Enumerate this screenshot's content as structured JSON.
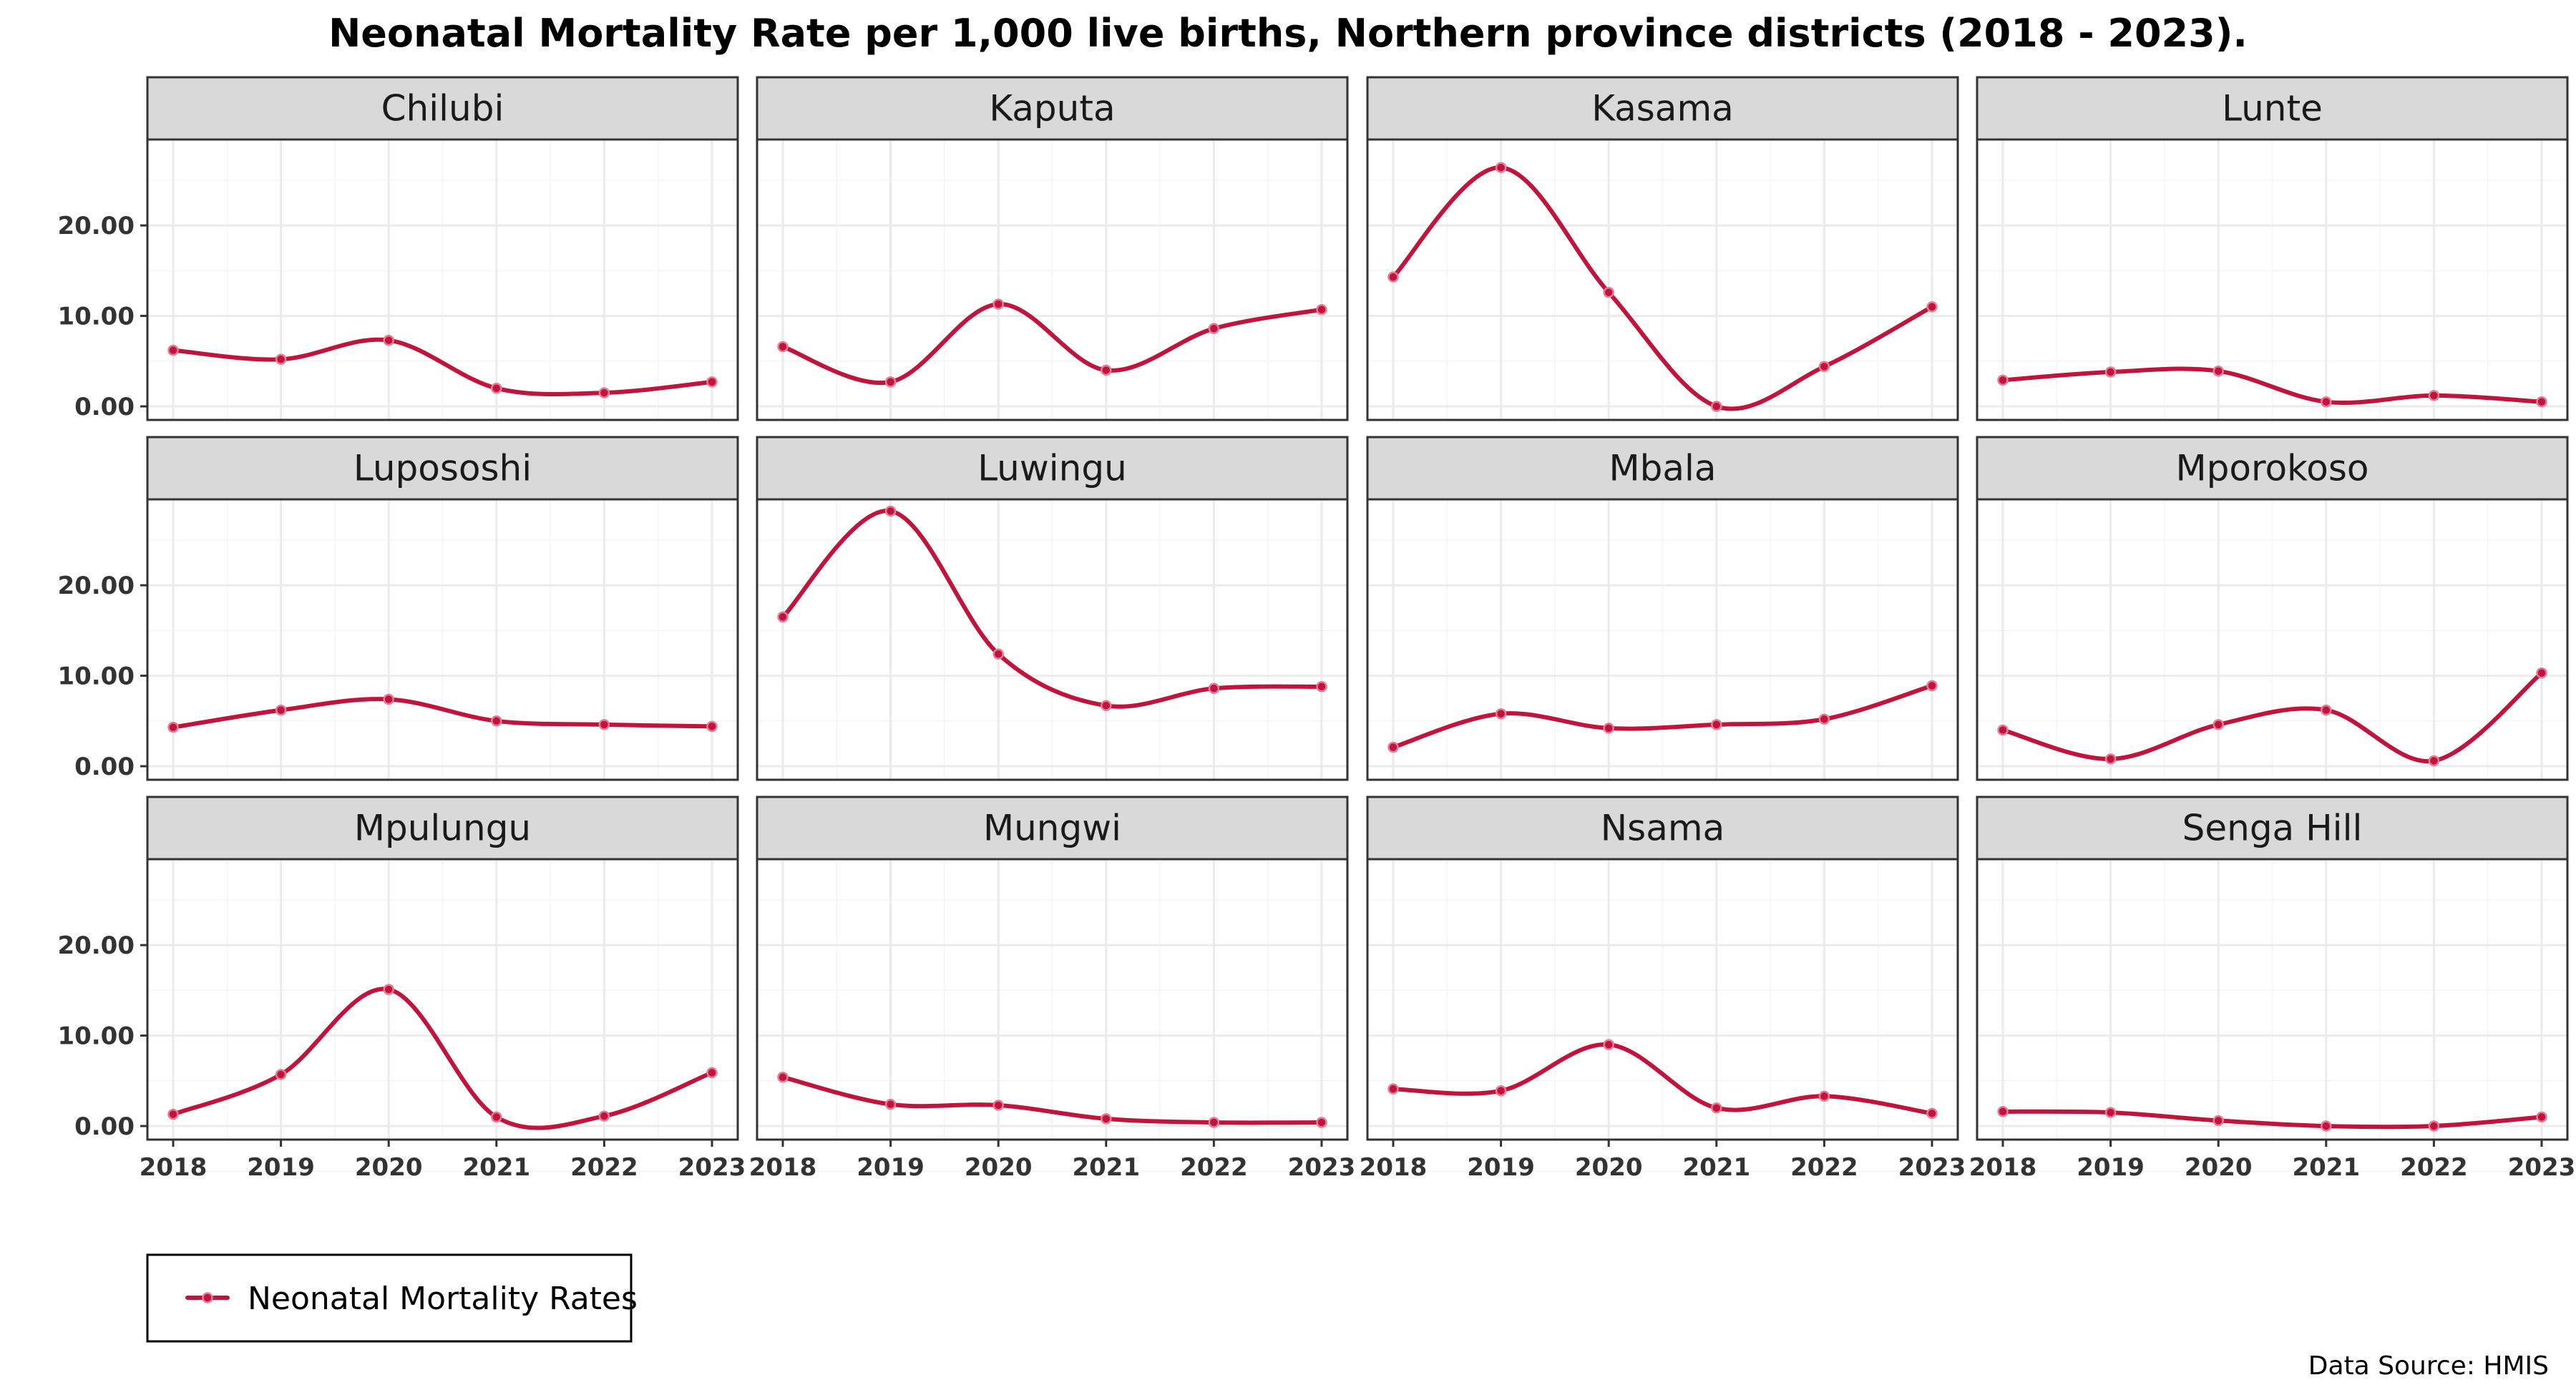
{
  "chart_data": {
    "type": "line",
    "title": "Neonatal Mortality Rate per 1,000 live births, Northern province districts (2018 - 2023).",
    "caption": "Data Source: HMIS",
    "x": [
      "2018",
      "2019",
      "2020",
      "2021",
      "2022",
      "2023"
    ],
    "ylim": [
      -1.5,
      29.5
    ],
    "y_ticks": [
      "0.00",
      "10.00",
      "20.00"
    ],
    "grid": true,
    "legend": {
      "position": "bottom-left",
      "label": "Neonatal Mortality Rates"
    },
    "color": "#c0143c",
    "facets": [
      {
        "name": "Chilubi",
        "values": [
          6.2,
          5.2,
          7.3,
          2.0,
          1.5,
          2.7
        ]
      },
      {
        "name": "Kaputa",
        "values": [
          6.6,
          2.7,
          11.3,
          4.0,
          8.6,
          10.7
        ]
      },
      {
        "name": "Kasama",
        "values": [
          14.3,
          26.4,
          12.6,
          0.0,
          4.4,
          11.0
        ]
      },
      {
        "name": "Lunte",
        "values": [
          2.9,
          3.8,
          3.9,
          0.5,
          1.2,
          0.5
        ]
      },
      {
        "name": "Lupososhi",
        "values": [
          4.3,
          6.2,
          7.4,
          5.0,
          4.6,
          4.4
        ]
      },
      {
        "name": "Luwingu",
        "values": [
          16.5,
          28.2,
          12.4,
          6.7,
          8.6,
          8.8
        ]
      },
      {
        "name": "Mbala",
        "values": [
          2.1,
          5.8,
          4.2,
          4.6,
          5.2,
          8.9
        ]
      },
      {
        "name": "Mporokoso",
        "values": [
          4.0,
          0.8,
          4.6,
          6.2,
          0.6,
          10.3
        ]
      },
      {
        "name": "Mpulungu",
        "values": [
          1.3,
          5.7,
          15.1,
          1.0,
          1.1,
          5.9
        ]
      },
      {
        "name": "Mungwi",
        "values": [
          5.4,
          2.4,
          2.3,
          0.8,
          0.4,
          0.4
        ]
      },
      {
        "name": "Nsama",
        "values": [
          4.1,
          3.9,
          9.0,
          2.0,
          3.3,
          1.4
        ]
      },
      {
        "name": "Senga Hill",
        "values": [
          1.6,
          1.5,
          0.6,
          0.0,
          0.0,
          1.0
        ]
      }
    ]
  }
}
